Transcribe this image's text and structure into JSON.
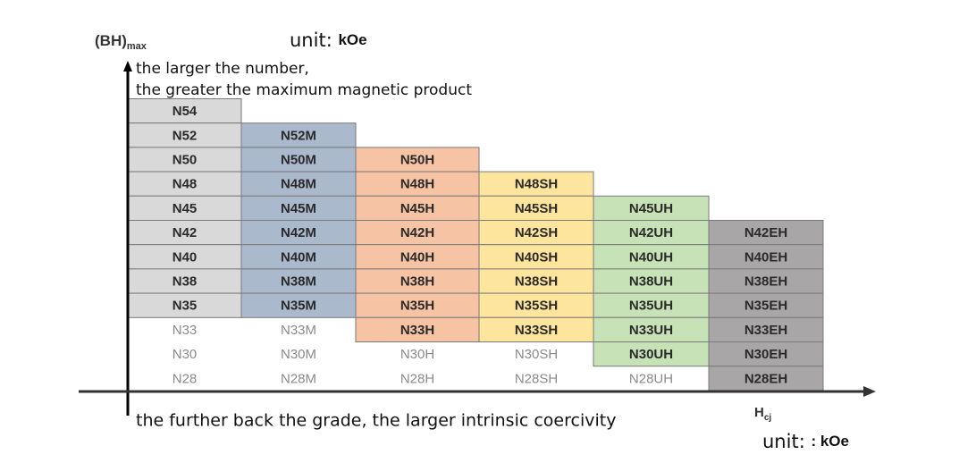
{
  "axis_y": {
    "label": "(BH)",
    "subscript": "max"
  },
  "unit_top": {
    "label": "unit:",
    "value": "kOe"
  },
  "note_top": [
    "the larger the number,",
    "the greater the maximum magnetic product"
  ],
  "axis_x": {
    "label": "H",
    "subscript": "cj"
  },
  "note_bottom": "the further back the grade, the larger intrinsic coercivity",
  "unit_bottom": {
    "label": "unit:",
    "value": ": kOe"
  },
  "columns": [
    {
      "cells": [
        "N54",
        "N52",
        "N50",
        "N48",
        "N45",
        "N42",
        "N40",
        "N38",
        "N35",
        "N33",
        "N30",
        "N28"
      ]
    },
    {
      "cells": [
        "N52M",
        "N50M",
        "N48M",
        "N45M",
        "N42M",
        "N40M",
        "N38M",
        "N35M",
        "N33M",
        "N30M",
        "N28M"
      ]
    },
    {
      "cells": [
        "N50H",
        "N48H",
        "N45H",
        "N42H",
        "N40H",
        "N38H",
        "N35H",
        "N33H",
        "N30H",
        "N28H"
      ]
    },
    {
      "cells": [
        "N48SH",
        "N45SH",
        "N42SH",
        "N40SH",
        "N38SH",
        "N35SH",
        "N33SH",
        "N30SH",
        "N28SH"
      ]
    },
    {
      "cells": [
        "N45UH",
        "N42UH",
        "N40UH",
        "N38UH",
        "N35UH",
        "N33UH",
        "N30UH",
        "N28UH"
      ]
    },
    {
      "cells": [
        "N42EH",
        "N40EH",
        "N38EH",
        "N35EH",
        "N33EH",
        "N30EH",
        "N28EH"
      ]
    }
  ]
}
